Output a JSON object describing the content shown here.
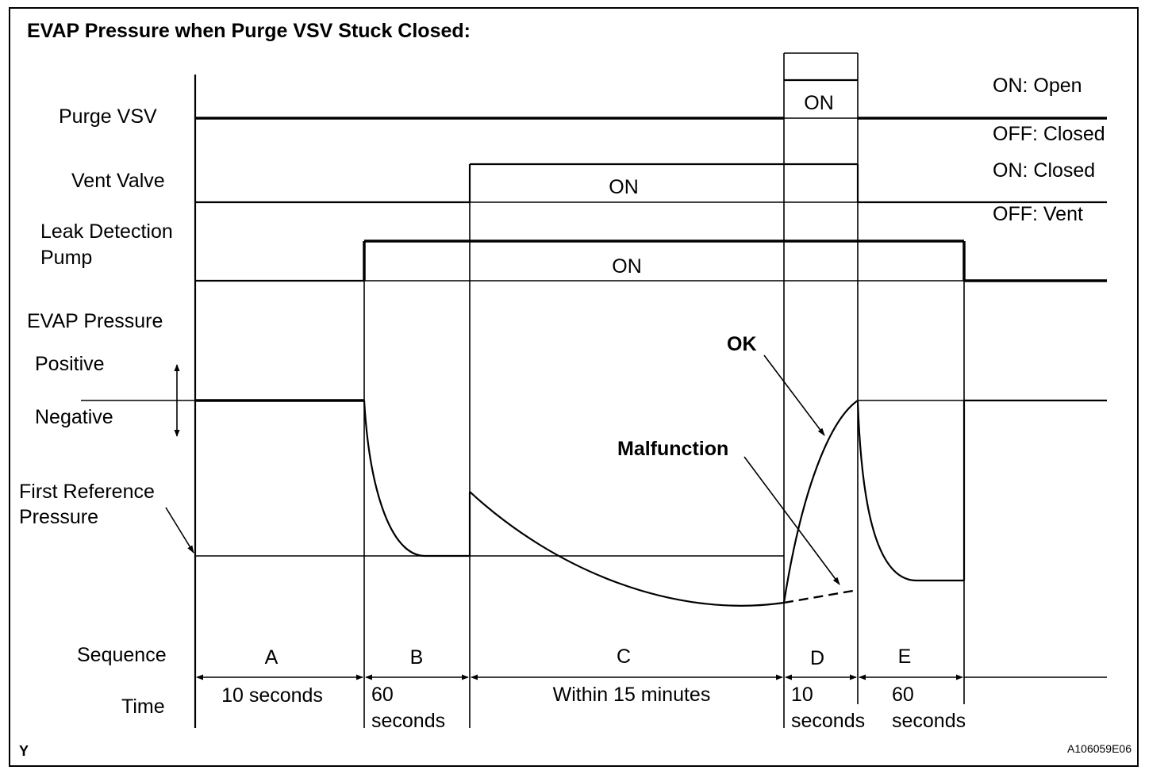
{
  "title": "EVAP Pressure when Purge VSV Stuck Closed:",
  "signals": {
    "purge_vsv": "Purge VSV",
    "vent_valve": "Vent Valve",
    "leak_pump_line1": "Leak Detection",
    "leak_pump_line2": "Pump",
    "evap_pressure": "EVAP Pressure",
    "positive": "Positive",
    "negative": "Negative",
    "first_ref_line1": "First Reference",
    "first_ref_line2": "Pressure"
  },
  "states": {
    "purge_on": "ON: Open",
    "purge_off": "OFF: Closed",
    "vent_on": "ON: Closed",
    "vent_off": "OFF: Vent",
    "on": "ON"
  },
  "annotations": {
    "ok": "OK",
    "malfunction": "Malfunction"
  },
  "sequence": {
    "label": "Sequence",
    "time_label": "Time",
    "phases": [
      {
        "id": "A",
        "time1": "10 seconds",
        "time2": ""
      },
      {
        "id": "B",
        "time1": "60",
        "time2": "seconds"
      },
      {
        "id": "C",
        "time1": "Within 15 minutes",
        "time2": ""
      },
      {
        "id": "D",
        "time1": "10",
        "time2": "seconds"
      },
      {
        "id": "E",
        "time1": "60",
        "time2": "seconds"
      }
    ]
  },
  "corner_letter": "Y",
  "figure_code": "A106059E06"
}
